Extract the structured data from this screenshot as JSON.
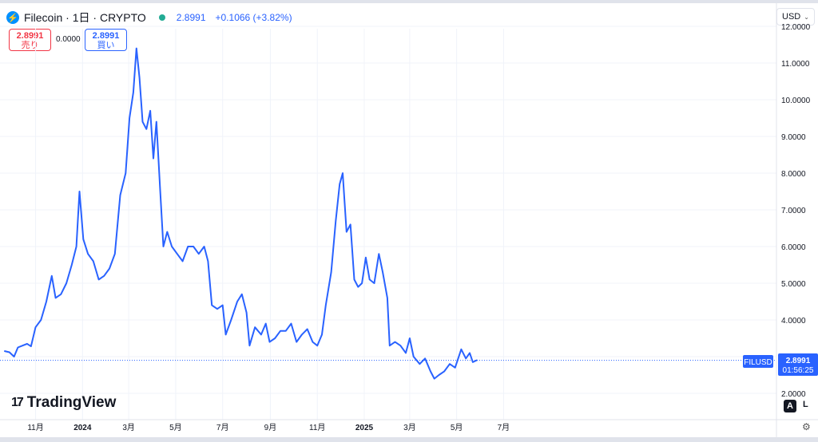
{
  "header": {
    "symbol": "Filecoin",
    "interval": "1日",
    "exchange": "CRYPTO",
    "price": "2.8991",
    "change": "+0.1066 (+3.82%)"
  },
  "trade": {
    "sell_price": "2.8991",
    "sell_label": "売り",
    "spread": "0.0000",
    "buy_price": "2.8991",
    "buy_label": "買い"
  },
  "currency": "USD",
  "price_label": {
    "ticker": "FILUSD",
    "price": "2.8991",
    "countdown": "01:56:25"
  },
  "brand": "TradingView",
  "scale_buttons": {
    "auto": "A",
    "log": "L"
  },
  "colors": {
    "line": "#2962ff",
    "accent": "#2962ff",
    "sell": "#f23645",
    "status": "#22ab94"
  },
  "chart_data": {
    "type": "line",
    "title": "Filecoin · 1日 · CRYPTO",
    "ylim": [
      2.0,
      12.0
    ],
    "y_ticks": [
      "2.0000",
      "3.0000",
      "4.0000",
      "5.0000",
      "6.0000",
      "7.0000",
      "8.0000",
      "9.0000",
      "10.0000",
      "11.0000",
      "12.0000"
    ],
    "x_ticks": [
      "11月",
      "2024",
      "3月",
      "5月",
      "7月",
      "9月",
      "11月",
      "2025",
      "3月",
      "5月",
      "7月"
    ],
    "grid": true,
    "series": [
      {
        "values": [
          [
            "2023-09-22",
            3.15
          ],
          [
            "2023-09-28",
            3.12
          ],
          [
            "2023-10-04",
            3.0
          ],
          [
            "2023-10-09",
            3.25
          ],
          [
            "2023-10-15",
            3.3
          ],
          [
            "2023-10-21",
            3.35
          ],
          [
            "2023-10-26",
            3.28
          ],
          [
            "2023-11-01",
            3.8
          ],
          [
            "2023-11-08",
            4.0
          ],
          [
            "2023-11-15",
            4.5
          ],
          [
            "2023-11-22",
            5.2
          ],
          [
            "2023-11-27",
            4.6
          ],
          [
            "2023-12-04",
            4.7
          ],
          [
            "2023-12-11",
            5.0
          ],
          [
            "2023-12-18",
            5.5
          ],
          [
            "2023-12-24",
            6.0
          ],
          [
            "2023-12-28",
            7.5
          ],
          [
            "2024-01-02",
            6.2
          ],
          [
            "2024-01-08",
            5.8
          ],
          [
            "2024-01-15",
            5.6
          ],
          [
            "2024-01-22",
            5.1
          ],
          [
            "2024-01-29",
            5.2
          ],
          [
            "2024-02-05",
            5.4
          ],
          [
            "2024-02-12",
            5.8
          ],
          [
            "2024-02-19",
            7.4
          ],
          [
            "2024-02-26",
            8.0
          ],
          [
            "2024-03-02",
            9.5
          ],
          [
            "2024-03-07",
            10.2
          ],
          [
            "2024-03-11",
            11.4
          ],
          [
            "2024-03-15",
            10.6
          ],
          [
            "2024-03-19",
            9.4
          ],
          [
            "2024-03-24",
            9.2
          ],
          [
            "2024-03-29",
            9.7
          ],
          [
            "2024-04-02",
            8.4
          ],
          [
            "2024-04-06",
            9.4
          ],
          [
            "2024-04-11",
            7.5
          ],
          [
            "2024-04-15",
            6.0
          ],
          [
            "2024-04-20",
            6.4
          ],
          [
            "2024-04-26",
            6.0
          ],
          [
            "2024-05-03",
            5.8
          ],
          [
            "2024-05-10",
            5.6
          ],
          [
            "2024-05-17",
            6.0
          ],
          [
            "2024-05-24",
            6.0
          ],
          [
            "2024-05-31",
            5.8
          ],
          [
            "2024-06-07",
            6.0
          ],
          [
            "2024-06-12",
            5.6
          ],
          [
            "2024-06-17",
            4.4
          ],
          [
            "2024-06-24",
            4.3
          ],
          [
            "2024-07-01",
            4.4
          ],
          [
            "2024-07-05",
            3.6
          ],
          [
            "2024-07-12",
            4.0
          ],
          [
            "2024-07-20",
            4.5
          ],
          [
            "2024-07-26",
            4.7
          ],
          [
            "2024-08-01",
            4.2
          ],
          [
            "2024-08-05",
            3.3
          ],
          [
            "2024-08-12",
            3.8
          ],
          [
            "2024-08-20",
            3.6
          ],
          [
            "2024-08-26",
            3.9
          ],
          [
            "2024-08-31",
            3.4
          ],
          [
            "2024-09-07",
            3.5
          ],
          [
            "2024-09-14",
            3.7
          ],
          [
            "2024-09-21",
            3.7
          ],
          [
            "2024-09-28",
            3.9
          ],
          [
            "2024-10-05",
            3.4
          ],
          [
            "2024-10-12",
            3.6
          ],
          [
            "2024-10-19",
            3.75
          ],
          [
            "2024-10-26",
            3.4
          ],
          [
            "2024-11-01",
            3.3
          ],
          [
            "2024-11-07",
            3.6
          ],
          [
            "2024-11-12",
            4.4
          ],
          [
            "2024-11-19",
            5.3
          ],
          [
            "2024-11-25",
            6.7
          ],
          [
            "2024-11-30",
            7.7
          ],
          [
            "2024-12-04",
            8.0
          ],
          [
            "2024-12-09",
            6.4
          ],
          [
            "2024-12-14",
            6.6
          ],
          [
            "2024-12-19",
            5.1
          ],
          [
            "2024-12-24",
            4.9
          ],
          [
            "2024-12-29",
            5.0
          ],
          [
            "2025-01-03",
            5.7
          ],
          [
            "2025-01-08",
            5.1
          ],
          [
            "2025-01-14",
            5.0
          ],
          [
            "2025-01-20",
            5.8
          ],
          [
            "2025-01-25",
            5.3
          ],
          [
            "2025-01-31",
            4.6
          ],
          [
            "2025-02-03",
            3.3
          ],
          [
            "2025-02-10",
            3.4
          ],
          [
            "2025-02-17",
            3.3
          ],
          [
            "2025-02-24",
            3.1
          ],
          [
            "2025-03-01",
            3.5
          ],
          [
            "2025-03-06",
            3.0
          ],
          [
            "2025-03-14",
            2.8
          ],
          [
            "2025-03-21",
            2.95
          ],
          [
            "2025-03-28",
            2.6
          ],
          [
            "2025-04-02",
            2.4
          ],
          [
            "2025-04-08",
            2.5
          ],
          [
            "2025-04-15",
            2.6
          ],
          [
            "2025-04-22",
            2.8
          ],
          [
            "2025-04-29",
            2.7
          ],
          [
            "2025-05-07",
            3.2
          ],
          [
            "2025-05-13",
            2.95
          ],
          [
            "2025-05-18",
            3.1
          ],
          [
            "2025-05-22",
            2.85
          ],
          [
            "2025-05-27",
            2.9
          ]
        ]
      }
    ]
  }
}
